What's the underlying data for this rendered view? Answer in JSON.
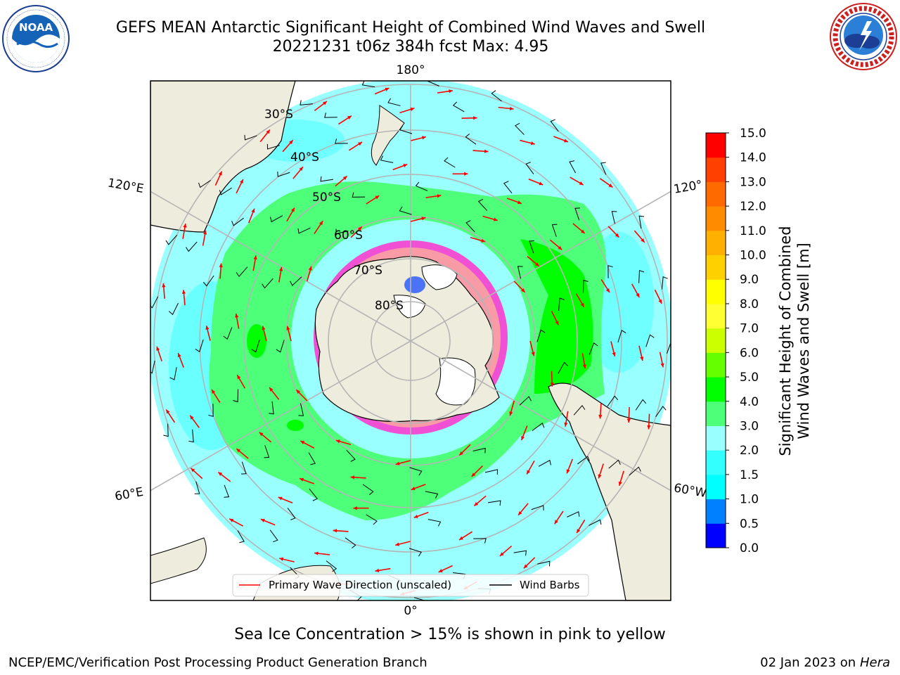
{
  "header": {
    "title_line1": "GEFS MEAN Antarctic Significant Height of Combined Wind Waves and Swell",
    "title_line2": "20221231 t06z 384h fcst   Max: 4.95"
  },
  "logos": {
    "left": {
      "text": "NOAA",
      "ring_text": "NATIONAL OCEANIC AND ATMOSPHERIC ADMINISTRATION · U.S. DEPARTMENT OF COMMERCE"
    },
    "right": {
      "ring_text": "NATIONAL WEATHER SERVICE"
    }
  },
  "map": {
    "projection": "south-polar-stereographic",
    "longitude_labels": {
      "top": "180°",
      "bottom": "0°",
      "upper_left": "120°E",
      "lower_left": "60°E",
      "upper_right": "120°",
      "lower_right": "60°W"
    },
    "latitude_labels": [
      "30°S",
      "40°S",
      "50°S",
      "60°S",
      "70°S",
      "80°S"
    ],
    "legend": {
      "wave_direction": "Primary Wave Direction (unscaled)",
      "wind_barbs": "Wind Barbs"
    },
    "colors": {
      "land": "#eeecdc",
      "ice_shelf": "#ffffff",
      "sea_ice": "#ff33cc",
      "arrow": "#ff0000",
      "barb": "#000000",
      "grid": "#b5b5b5"
    }
  },
  "colorbar": {
    "title_line1": "Significant Height of Combined",
    "title_line2": "Wind Waves and Swell [m]",
    "ticks": [
      "0.0",
      "0.5",
      "1.0",
      "1.5",
      "2.0",
      "3.0",
      "4.0",
      "5.0",
      "6.0",
      "7.0",
      "8.0",
      "9.0",
      "10.0",
      "11.0",
      "12.0",
      "13.0",
      "14.0",
      "15.0"
    ],
    "colors": [
      "#0000ff",
      "#0080ff",
      "#00ffff",
      "#33ffff",
      "#99ffff",
      "#4dff79",
      "#00ff00",
      "#66ff00",
      "#ccff00",
      "#ffff33",
      "#ffff00",
      "#ffd000",
      "#ffb000",
      "#ff8c00",
      "#ff6a00",
      "#ff4000",
      "#ff0000"
    ]
  },
  "caption": "Sea Ice Concentration > 15% is shown in pink to yellow",
  "footer": {
    "left": "NCEP/EMC/Verification Post Processing Product Generation Branch",
    "right_date": "02 Jan 2023 on ",
    "right_host": "Hera"
  }
}
